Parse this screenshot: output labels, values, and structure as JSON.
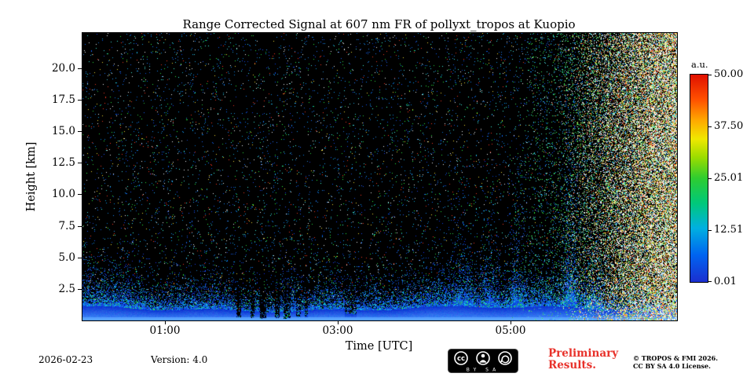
{
  "footer": {
    "date": "2026-02-23",
    "version": "Version: 4.0",
    "preliminary_line1": "Preliminary",
    "preliminary_line2": "Results.",
    "copyright_line1": "© TROPOS & FMI 2026.",
    "copyright_line2": "CC BY SA 4.0 License.",
    "badge": {
      "cc_text": "cc",
      "by_sa_text": "BY SA"
    }
  },
  "colors": {
    "preliminary_red": "#e8312a",
    "axis_text": "#000000",
    "plot_background": "#000000",
    "near_ground_signal_blue": "#2a64ff"
  },
  "chart_data": {
    "type": "heatmap",
    "title": "Range Corrected Signal at 607 nm FR of pollyxt_tropos at Kuopio",
    "xlabel": "Time [UTC]",
    "ylabel": "Height [km]",
    "x_tick_labels": [
      "01:00",
      "03:00",
      "05:00"
    ],
    "x_tick_times_h": [
      1,
      3,
      5
    ],
    "x_range_h": [
      0.05,
      6.93
    ],
    "y_tick_labels": [
      "20.0",
      "17.5",
      "15.0",
      "12.5",
      "10.0",
      "7.5",
      "5.0",
      "2.5"
    ],
    "y_tick_values": [
      20.0,
      17.5,
      15.0,
      12.5,
      10.0,
      7.5,
      5.0,
      2.5
    ],
    "y_range_km": [
      0,
      22.8
    ],
    "grid": false,
    "colorbar": {
      "label": "a.u.",
      "tick_labels": [
        "50.00",
        "37.50",
        "25.01",
        "12.51",
        "0.01"
      ],
      "tick_values": [
        50.0,
        37.5,
        25.01,
        12.51,
        0.01
      ],
      "vmin": 0.01,
      "vmax": 50.0,
      "colormap": "jet-like, blue (low) to red (high), values below range shown black"
    },
    "content_summary": "Lidar range-corrected signal quicklook. Strong blue signal layer below ~1-3 km across the whole night; black (below-threshold) region above with sparse colored photon noise speckle; narrow dark vertical streaks between ~02:00 and 03:00 cutting into the low layer; taller blue speckle plumes ~04:30-06:00 reaching ~7 km; dense white/green/yellow daylight background noise filling the panel after ~05:30, strongest at the right edge.",
    "render": {
      "seed": 1337,
      "top_km": 22.8,
      "solid_base_km": 0.85,
      "fall_km": 0.8,
      "speckle_bg_p": 0.03,
      "col_mod": {
        "a1": 0.22,
        "f1": 0.011,
        "p1": 2.0,
        "a2": 0.12,
        "f2": 0.043,
        "p2": 0.7,
        "a3": 0.1,
        "f3": 0.0045,
        "p3": 0.2
      },
      "streaks": [
        {
          "c": 0.262,
          "w": 0.004,
          "f": 0.25
        },
        {
          "c": 0.285,
          "w": 0.003,
          "f": 0.3
        },
        {
          "c": 0.303,
          "w": 0.005,
          "f": 0.2
        },
        {
          "c": 0.327,
          "w": 0.004,
          "f": 0.3
        },
        {
          "c": 0.344,
          "w": 0.006,
          "f": 0.18
        },
        {
          "c": 0.362,
          "w": 0.004,
          "f": 0.3
        },
        {
          "c": 0.376,
          "w": 0.003,
          "f": 0.35
        },
        {
          "c": 0.45,
          "w": 0.01,
          "f": 0.55
        }
      ],
      "plumes": [
        {
          "c": 0.07,
          "w": 0.05,
          "top": 1.2,
          "d": 0.18
        },
        {
          "c": 0.35,
          "w": 0.02,
          "top": 1.8,
          "d": 0.25
        },
        {
          "c": 0.64,
          "w": 0.02,
          "top": 2.0,
          "d": 0.4
        },
        {
          "c": 0.685,
          "w": 0.018,
          "top": 2.4,
          "d": 0.45
        },
        {
          "c": 0.73,
          "w": 0.015,
          "top": 2.8,
          "d": 0.5
        },
        {
          "c": 0.82,
          "w": 0.013,
          "top": 3.2,
          "d": 0.8
        },
        {
          "c": 0.86,
          "w": 0.02,
          "top": 2.5,
          "d": 0.4
        }
      ],
      "day": {
        "t0": 0.78,
        "t1": 1.0,
        "max_p": 0.7,
        "pre_t0": 0.7,
        "pre_t1": 0.85,
        "pre_p": 0.1
      }
    }
  }
}
